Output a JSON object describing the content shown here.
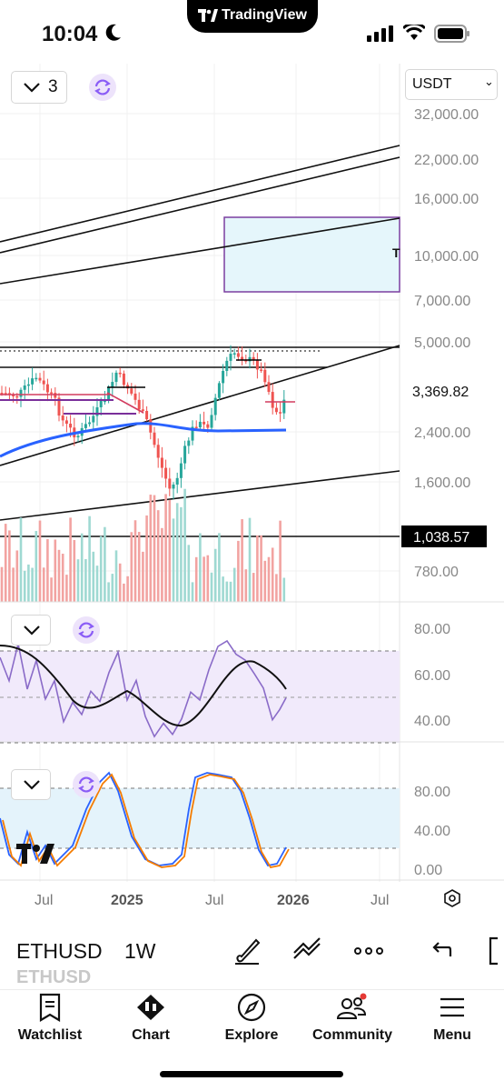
{
  "status_bar": {
    "time": "10:04",
    "brand": "TradingView"
  },
  "chart": {
    "indicator_count": "3",
    "currency": "USDT",
    "price_scale": [
      "32,000.00",
      "22,000.00",
      "16,000.00",
      "10,000.00",
      "7,000.00",
      "5,000.00",
      "2,400.00",
      "1,600.00",
      "780.00"
    ],
    "current_price": "3,369.82",
    "marker_price": "1,038.57",
    "box_label": "T",
    "rsi_scale": [
      "80.00",
      "60.00",
      "40.00"
    ],
    "stoch_scale": [
      "80.00",
      "40.00",
      "0.00"
    ],
    "time_axis": [
      "Jul",
      "2025",
      "Jul",
      "2026",
      "Jul"
    ],
    "watermark": "TV"
  },
  "chart_data": {
    "type": "line",
    "y_scale": "log",
    "current_price": 3369.82,
    "marker_price": 1038.57,
    "x_ticks": [
      "Jul",
      "2025",
      "Jul",
      "2026",
      "Jul"
    ]
  },
  "toolbar": {
    "symbol": "ETHUSD",
    "symbol_ghost": "ETHUSD",
    "interval": "1W"
  },
  "tabs": [
    {
      "label": "Watchlist"
    },
    {
      "label": "Chart"
    },
    {
      "label": "Explore"
    },
    {
      "label": "Community"
    },
    {
      "label": "Menu"
    }
  ],
  "colors": {
    "accent": "#8a5cf6",
    "up": "#26a69a",
    "down": "#ef5350",
    "ma": "#2962ff"
  },
  "icons": [
    "moon-icon",
    "signal-icon",
    "wifi-icon",
    "battery-icon",
    "chevron-down-icon",
    "sync-icon",
    "brush-icon",
    "trendline-icon",
    "more-icon",
    "undo-icon",
    "settings-icon",
    "watchlist-icon",
    "chart-icon",
    "explore-icon",
    "community-icon",
    "menu-icon"
  ]
}
